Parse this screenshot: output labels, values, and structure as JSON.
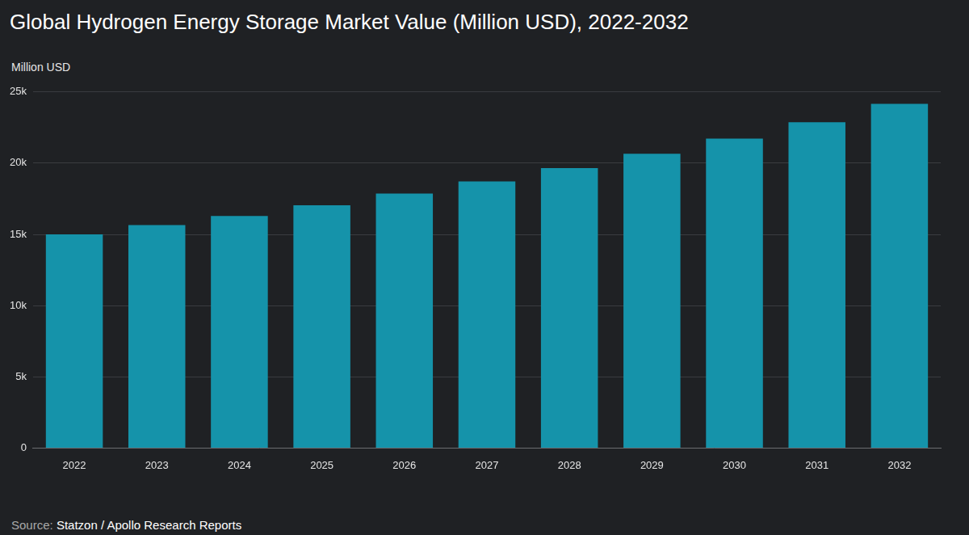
{
  "chart_data": {
    "type": "bar",
    "title": "Global Hydrogen Energy Storage Market Value (Million USD), 2022-2032",
    "y_label": "Million USD",
    "source_label": "Source:",
    "source": "Statzon / Apollo Research Reports",
    "categories": [
      "2022",
      "2023",
      "2024",
      "2025",
      "2026",
      "2027",
      "2028",
      "2029",
      "2030",
      "2031",
      "2032"
    ],
    "values": [
      15000,
      15650,
      16300,
      17050,
      17870,
      18720,
      19650,
      20660,
      21720,
      22880,
      24160
    ],
    "color": "#1593aa",
    "ylim": [
      0,
      25000
    ],
    "yticks": [
      0,
      {
        "value": 5000,
        "label": "5k"
      },
      {
        "value": 10000,
        "label": "10k"
      },
      {
        "value": 15000,
        "label": "15k"
      },
      {
        "value": 20000,
        "label": "20k"
      },
      {
        "value": 25000,
        "label": "25k"
      }
    ],
    "grid": true
  }
}
